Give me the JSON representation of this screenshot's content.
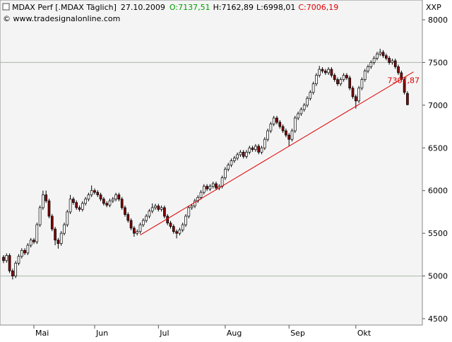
{
  "chart_data": {
    "type": "candlestick",
    "title": "MDAX Perf [.MDAX  Täglich]",
    "date": "27.10.2009",
    "quote": [
      {
        "text": "O:7137,51",
        "color": "#00a000"
      },
      {
        "text": "H:7162,89",
        "color": "#000000"
      },
      {
        "text": "L:6998,01",
        "color": "#000000"
      },
      {
        "text": "C:7006,19",
        "color": "#e00000"
      }
    ],
    "copyright": "© www.tradesignalonline.com",
    "unit": "XXP",
    "up_color": "#ffffff",
    "down_color": "#800000",
    "outline_color": "#000000",
    "xlim": [
      -1.16,
      137.9
    ],
    "xticks": [
      {
        "value": 10,
        "label": "Mai"
      },
      {
        "value": 30,
        "label": "Jun"
      },
      {
        "value": 51,
        "label": "Jul"
      },
      {
        "value": 73,
        "label": "Aug"
      },
      {
        "value": 94,
        "label": "Sep"
      },
      {
        "value": 116,
        "label": "Okt"
      }
    ],
    "ylim": [
      4425.6,
      8231.7
    ],
    "yticks": [
      4500,
      5000,
      5500,
      6000,
      6500,
      7000,
      7500,
      8000
    ],
    "hlines": [
      5000,
      7500
    ],
    "hline_color": "#a8b8a8",
    "trendline": {
      "x": [
        45,
        135
      ],
      "y": [
        5480,
        7390
      ],
      "color": "#e00000",
      "label": "7307,87"
    },
    "open": [
      5220,
      5180,
      5240,
      5060,
      5000,
      5150,
      5230,
      5300,
      5270,
      5360,
      5420,
      5400,
      5600,
      5800,
      5950,
      5880,
      5700,
      5550,
      5420,
      5380,
      5500,
      5600,
      5750,
      5900,
      5860,
      5800,
      5780,
      5850,
      5900,
      5950,
      6000,
      5980,
      5950,
      5900,
      5850,
      5830,
      5880,
      5900,
      5950,
      5900,
      5800,
      5720,
      5650,
      5560,
      5500,
      5520,
      5600,
      5650,
      5700,
      5760,
      5800,
      5820,
      5780,
      5800,
      5700,
      5620,
      5580,
      5520,
      5500,
      5540,
      5600,
      5700,
      5800,
      5820,
      5880,
      5920,
      5980,
      6050,
      6020,
      6050,
      6080,
      6030,
      6050,
      6150,
      6250,
      6300,
      6350,
      6380,
      6420,
      6450,
      6400,
      6450,
      6500,
      6480,
      6520,
      6450,
      6500,
      6600,
      6700,
      6780,
      6850,
      6800,
      6750,
      6700,
      6650,
      6600,
      6700,
      6850,
      6900,
      6950,
      7000,
      7080,
      7150,
      7250,
      7350,
      7420,
      7400,
      7380,
      7420,
      7350,
      7300,
      7250,
      7300,
      7350,
      7320,
      7200,
      7100,
      7050,
      7200,
      7300,
      7400,
      7450,
      7500,
      7550,
      7600,
      7620,
      7580,
      7550,
      7500,
      7520,
      7450,
      7380,
      7300,
      7137.51
    ],
    "high": [
      5245,
      5265,
      5265,
      5085,
      5175,
      5255,
      5325,
      5325,
      5385,
      5445,
      5445,
      5625,
      5825,
      6000,
      6000,
      5905,
      5725,
      5575,
      5445,
      5525,
      5625,
      5775,
      5950,
      5925,
      5885,
      5825,
      5875,
      5925,
      5975,
      6060,
      6025,
      6005,
      5975,
      5925,
      5875,
      5905,
      5925,
      5975,
      5975,
      5925,
      5825,
      5745,
      5675,
      5585,
      5545,
      5625,
      5675,
      5725,
      5785,
      5850,
      5845,
      5845,
      5825,
      5825,
      5725,
      5645,
      5605,
      5545,
      5565,
      5625,
      5725,
      5825,
      5845,
      5905,
      5945,
      6005,
      6075,
      6075,
      6075,
      6105,
      6105,
      6075,
      6175,
      6275,
      6325,
      6375,
      6405,
      6445,
      6475,
      6475,
      6475,
      6525,
      6525,
      6545,
      6545,
      6525,
      6625,
      6725,
      6805,
      6875,
      6875,
      6825,
      6775,
      6725,
      6675,
      6725,
      6875,
      6925,
      6975,
      7025,
      7105,
      7175,
      7275,
      7375,
      7460,
      7445,
      7425,
      7445,
      7445,
      7375,
      7325,
      7325,
      7375,
      7375,
      7345,
      7225,
      7125,
      7225,
      7325,
      7425,
      7475,
      7525,
      7575,
      7625,
      7660,
      7645,
      7605,
      7575,
      7545,
      7545,
      7475,
      7405,
      7325,
      7162.89
    ],
    "low": [
      5150,
      5155,
      5035,
      4960,
      4975,
      5125,
      5205,
      5245,
      5245,
      5335,
      5375,
      5375,
      5575,
      5775,
      5855,
      5675,
      5525,
      5360,
      5320,
      5355,
      5475,
      5575,
      5725,
      5835,
      5775,
      5755,
      5755,
      5825,
      5875,
      5925,
      5955,
      5925,
      5875,
      5825,
      5805,
      5805,
      5855,
      5875,
      5875,
      5775,
      5695,
      5625,
      5535,
      5460,
      5475,
      5495,
      5575,
      5625,
      5675,
      5735,
      5775,
      5755,
      5755,
      5675,
      5595,
      5555,
      5495,
      5440,
      5475,
      5515,
      5575,
      5675,
      5775,
      5795,
      5855,
      5895,
      5955,
      5995,
      5995,
      6025,
      6005,
      6005,
      6025,
      6125,
      6225,
      6275,
      6325,
      6355,
      6395,
      6375,
      6375,
      6425,
      6455,
      6455,
      6425,
      6425,
      6475,
      6575,
      6675,
      6755,
      6775,
      6725,
      6675,
      6625,
      6520,
      6575,
      6675,
      6825,
      6875,
      6925,
      6975,
      7055,
      7125,
      7225,
      7325,
      7375,
      7355,
      7355,
      7325,
      7275,
      7225,
      7225,
      7275,
      7295,
      7175,
      7075,
      6960,
      7025,
      7175,
      7275,
      7375,
      7425,
      7475,
      7525,
      7575,
      7555,
      7525,
      7475,
      7475,
      7425,
      7355,
      7275,
      7125,
      6998.01
    ],
    "close": [
      5180,
      5240,
      5060,
      5000,
      5150,
      5230,
      5300,
      5270,
      5360,
      5420,
      5400,
      5600,
      5800,
      5950,
      5880,
      5700,
      5550,
      5420,
      5380,
      5500,
      5600,
      5750,
      5900,
      5860,
      5800,
      5780,
      5850,
      5900,
      5950,
      6000,
      5980,
      5950,
      5900,
      5850,
      5830,
      5880,
      5900,
      5950,
      5900,
      5800,
      5720,
      5650,
      5560,
      5500,
      5520,
      5600,
      5650,
      5700,
      5760,
      5800,
      5820,
      5780,
      5800,
      5700,
      5620,
      5580,
      5520,
      5500,
      5540,
      5600,
      5700,
      5800,
      5820,
      5880,
      5920,
      5980,
      6050,
      6020,
      6050,
      6080,
      6030,
      6050,
      6150,
      6250,
      6300,
      6350,
      6380,
      6420,
      6450,
      6400,
      6450,
      6500,
      6480,
      6520,
      6450,
      6500,
      6600,
      6700,
      6780,
      6850,
      6800,
      6750,
      6700,
      6650,
      6600,
      6700,
      6850,
      6900,
      6950,
      7000,
      7080,
      7150,
      7250,
      7350,
      7420,
      7400,
      7380,
      7420,
      7350,
      7300,
      7250,
      7300,
      7350,
      7320,
      7200,
      7100,
      7050,
      7200,
      7300,
      7400,
      7450,
      7500,
      7550,
      7600,
      7620,
      7580,
      7550,
      7500,
      7520,
      7450,
      7380,
      7300,
      7150,
      7006.19
    ]
  }
}
